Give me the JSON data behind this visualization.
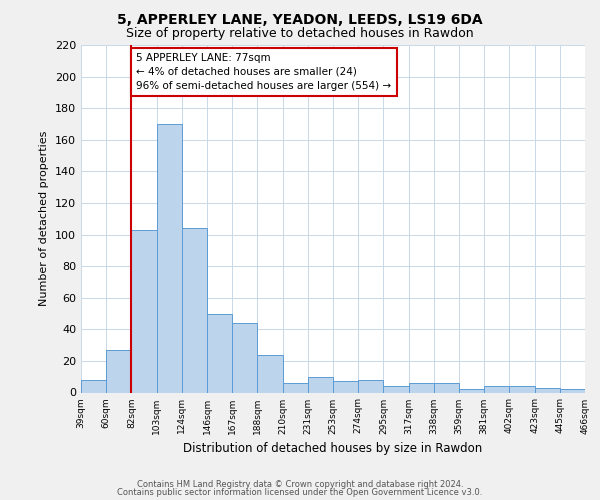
{
  "title1": "5, APPERLEY LANE, YEADON, LEEDS, LS19 6DA",
  "title2": "Size of property relative to detached houses in Rawdon",
  "xlabel": "Distribution of detached houses by size in Rawdon",
  "ylabel": "Number of detached properties",
  "bar_values": [
    8,
    27,
    103,
    170,
    104,
    50,
    44,
    24,
    6,
    10,
    7,
    8,
    4,
    6,
    6,
    2,
    4,
    4,
    3,
    2
  ],
  "bin_labels": [
    "39sqm",
    "60sqm",
    "82sqm",
    "103sqm",
    "124sqm",
    "146sqm",
    "167sqm",
    "188sqm",
    "210sqm",
    "231sqm",
    "253sqm",
    "274sqm",
    "295sqm",
    "317sqm",
    "338sqm",
    "359sqm",
    "381sqm",
    "402sqm",
    "423sqm",
    "445sqm",
    "466sqm"
  ],
  "bar_color": "#bcd4ec",
  "bar_edge_color": "#5b9bd5",
  "red_line_index": 2,
  "red_line_color": "#cc0000",
  "annotation_line1": "5 APPERLEY LANE: 77sqm",
  "annotation_line2": "← 4% of detached houses are smaller (24)",
  "annotation_line3": "96% of semi-detached houses are larger (554) →",
  "annotation_box_edge": "#cc0000",
  "annotation_box_face": "#ffffff",
  "ylim": [
    0,
    220
  ],
  "yticks": [
    0,
    20,
    40,
    60,
    80,
    100,
    120,
    140,
    160,
    180,
    200,
    220
  ],
  "footer1": "Contains HM Land Registry data © Crown copyright and database right 2024.",
  "footer2": "Contains public sector information licensed under the Open Government Licence v3.0.",
  "bg_color": "#f0f0f0",
  "plot_bg_color": "#ffffff",
  "grid_color": "#c8d8e8"
}
